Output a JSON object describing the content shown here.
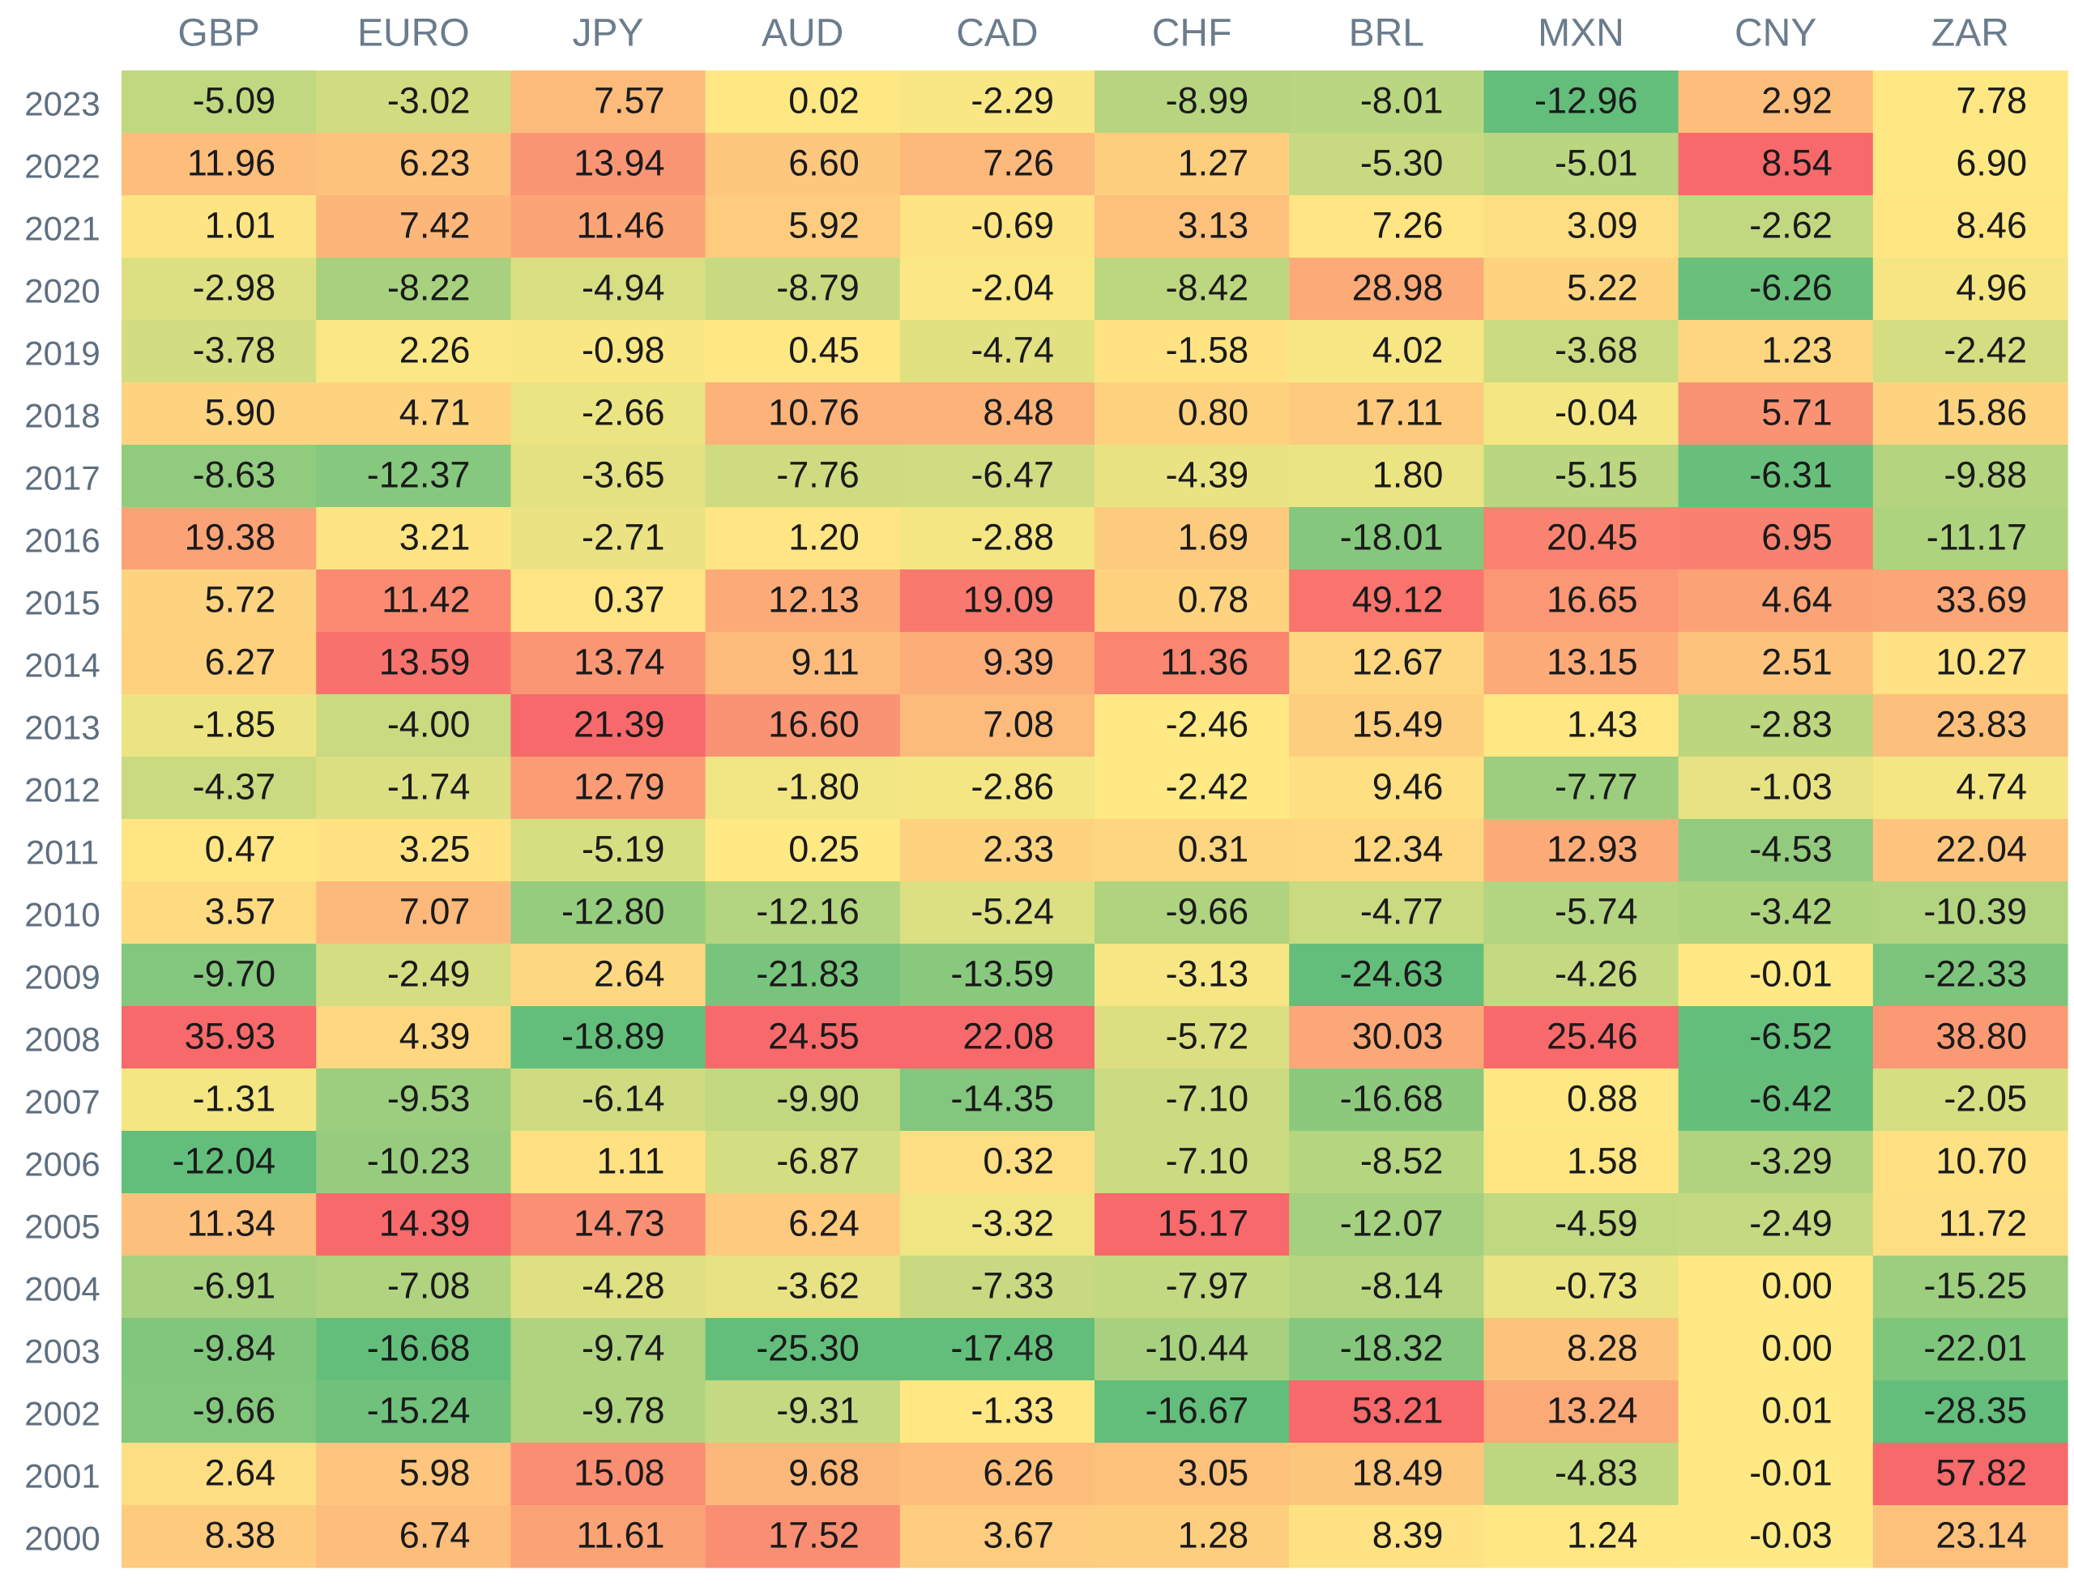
{
  "chart_data": {
    "type": "heatmap",
    "x_categories": [
      "GBP",
      "EURO",
      "JPY",
      "AUD",
      "CAD",
      "CHF",
      "BRL",
      "MXN",
      "CNY",
      "ZAR"
    ],
    "y_categories": [
      "2023",
      "2022",
      "2021",
      "2020",
      "2019",
      "2018",
      "2017",
      "2016",
      "2015",
      "2014",
      "2013",
      "2012",
      "2011",
      "2010",
      "2009",
      "2008",
      "2007",
      "2006",
      "2005",
      "2004",
      "2003",
      "2002",
      "2001",
      "2000"
    ],
    "colors": [
      "#63be7b",
      "#ffe984",
      "#f8696b"
    ],
    "values": [
      [
        -5.09,
        -3.02,
        7.57,
        0.02,
        -2.29,
        -8.99,
        -8.01,
        -12.96,
        2.92,
        7.78
      ],
      [
        11.96,
        6.23,
        13.94,
        6.6,
        7.26,
        1.27,
        -5.3,
        -5.01,
        8.54,
        6.9
      ],
      [
        1.01,
        7.42,
        11.46,
        5.92,
        -0.69,
        3.13,
        7.26,
        3.09,
        -2.62,
        8.46
      ],
      [
        -2.98,
        -8.22,
        -4.94,
        -8.79,
        -2.04,
        -8.42,
        28.98,
        5.22,
        -6.26,
        4.96
      ],
      [
        -3.78,
        2.26,
        -0.98,
        0.45,
        -4.74,
        -1.58,
        4.02,
        -3.68,
        1.23,
        -2.42
      ],
      [
        5.9,
        4.71,
        -2.66,
        10.76,
        8.48,
        0.8,
        17.11,
        -0.04,
        5.71,
        15.86
      ],
      [
        -8.63,
        -12.37,
        -3.65,
        -7.76,
        -6.47,
        -4.39,
        1.8,
        -5.15,
        -6.31,
        -9.88
      ],
      [
        19.38,
        3.21,
        -2.71,
        1.2,
        -2.88,
        1.69,
        -18.01,
        20.45,
        6.95,
        -11.17
      ],
      [
        5.72,
        11.42,
        0.37,
        12.13,
        19.09,
        0.78,
        49.12,
        16.65,
        4.64,
        33.69
      ],
      [
        6.27,
        13.59,
        13.74,
        9.11,
        9.39,
        11.36,
        12.67,
        13.15,
        2.51,
        10.27
      ],
      [
        -1.85,
        -4.0,
        21.39,
        16.6,
        7.08,
        -2.46,
        15.49,
        1.43,
        -2.83,
        23.83
      ],
      [
        -4.37,
        -1.74,
        12.79,
        -1.8,
        -2.86,
        -2.42,
        9.46,
        -7.77,
        -1.03,
        4.74
      ],
      [
        0.47,
        3.25,
        -5.19,
        0.25,
        2.33,
        0.31,
        12.34,
        12.93,
        -4.53,
        22.04
      ],
      [
        3.57,
        7.07,
        -12.8,
        -12.16,
        -5.24,
        -9.66,
        -4.77,
        -5.74,
        -3.42,
        -10.39
      ],
      [
        -9.7,
        -2.49,
        2.64,
        -21.83,
        -13.59,
        -3.13,
        -24.63,
        -4.26,
        -0.01,
        -22.33
      ],
      [
        35.93,
        4.39,
        -18.89,
        24.55,
        22.08,
        -5.72,
        30.03,
        25.46,
        -6.52,
        38.8
      ],
      [
        -1.31,
        -9.53,
        -6.14,
        -9.9,
        -14.35,
        -7.1,
        -16.68,
        0.88,
        -6.42,
        -2.05
      ],
      [
        -12.04,
        -10.23,
        1.11,
        -6.87,
        0.32,
        -7.1,
        -8.52,
        1.58,
        -3.29,
        10.7
      ],
      [
        11.34,
        14.39,
        14.73,
        6.24,
        -3.32,
        15.17,
        -12.07,
        -4.59,
        -2.49,
        11.72
      ],
      [
        -6.91,
        -7.08,
        -4.28,
        -3.62,
        -7.33,
        -7.97,
        -8.14,
        -0.73,
        0.0,
        -15.25
      ],
      [
        -9.84,
        -16.68,
        -9.74,
        -25.3,
        -17.48,
        -10.44,
        -18.32,
        8.28,
        0.0,
        -22.01
      ],
      [
        -9.66,
        -15.24,
        -9.78,
        -9.31,
        -1.33,
        -16.67,
        53.21,
        13.24,
        0.01,
        -28.35
      ],
      [
        2.64,
        5.98,
        15.08,
        9.68,
        6.26,
        3.05,
        18.49,
        -4.83,
        -0.01,
        57.82
      ],
      [
        8.38,
        6.74,
        11.61,
        17.52,
        3.67,
        1.28,
        8.39,
        1.24,
        -0.03,
        23.14
      ]
    ],
    "value_labels": [
      [
        "-5.09",
        "-3.02",
        "7.57",
        "0.02",
        "-2.29",
        "-8.99",
        "-8.01",
        "-12.96",
        "2.92",
        "7.78"
      ],
      [
        "11.96",
        "6.23",
        "13.94",
        "6.60",
        "7.26",
        "1.27",
        "-5.30",
        "-5.01",
        "8.54",
        "6.90"
      ],
      [
        "1.01",
        "7.42",
        "11.46",
        "5.92",
        "-0.69",
        "3.13",
        "7.26",
        "3.09",
        "-2.62",
        "8.46"
      ],
      [
        "-2.98",
        "-8.22",
        "-4.94",
        "-8.79",
        "-2.04",
        "-8.42",
        "28.98",
        "5.22",
        "-6.26",
        "4.96"
      ],
      [
        "-3.78",
        "2.26",
        "-0.98",
        "0.45",
        "-4.74",
        "-1.58",
        "4.02",
        "-3.68",
        "1.23",
        "-2.42"
      ],
      [
        "5.90",
        "4.71",
        "-2.66",
        "10.76",
        "8.48",
        "0.80",
        "17.11",
        "-0.04",
        "5.71",
        "15.86"
      ],
      [
        "-8.63",
        "-12.37",
        "-3.65",
        "-7.76",
        "-6.47",
        "-4.39",
        "1.80",
        "-5.15",
        "-6.31",
        "-9.88"
      ],
      [
        "19.38",
        "3.21",
        "-2.71",
        "1.20",
        "-2.88",
        "1.69",
        "-18.01",
        "20.45",
        "6.95",
        "-11.17"
      ],
      [
        "5.72",
        "11.42",
        "0.37",
        "12.13",
        "19.09",
        "0.78",
        "49.12",
        "16.65",
        "4.64",
        "33.69"
      ],
      [
        "6.27",
        "13.59",
        "13.74",
        "9.11",
        "9.39",
        "11.36",
        "12.67",
        "13.15",
        "2.51",
        "10.27"
      ],
      [
        "-1.85",
        "-4.00",
        "21.39",
        "16.60",
        "7.08",
        "-2.46",
        "15.49",
        "1.43",
        "-2.83",
        "23.83"
      ],
      [
        "-4.37",
        "-1.74",
        "12.79",
        "-1.80",
        "-2.86",
        "-2.42",
        "9.46",
        "-7.77",
        "-1.03",
        "4.74"
      ],
      [
        "0.47",
        "3.25",
        "-5.19",
        "0.25",
        "2.33",
        "0.31",
        "12.34",
        "12.93",
        "-4.53",
        "22.04"
      ],
      [
        "3.57",
        "7.07",
        "-12.80",
        "-12.16",
        "-5.24",
        "-9.66",
        "-4.77",
        "-5.74",
        "-3.42",
        "-10.39"
      ],
      [
        "-9.70",
        "-2.49",
        "2.64",
        "-21.83",
        "-13.59",
        "-3.13",
        "-24.63",
        "-4.26",
        "-0.01",
        "-22.33"
      ],
      [
        "35.93",
        "4.39",
        "-18.89",
        "24.55",
        "22.08",
        "-5.72",
        "30.03",
        "25.46",
        "-6.52",
        "38.80"
      ],
      [
        "-1.31",
        "-9.53",
        "-6.14",
        "-9.90",
        "-14.35",
        "-7.10",
        "-16.68",
        "0.88",
        "-6.42",
        "-2.05"
      ],
      [
        "-12.04",
        "-10.23",
        "1.11",
        "-6.87",
        "0.32",
        "-7.10",
        "-8.52",
        "1.58",
        "-3.29",
        "10.70"
      ],
      [
        "11.34",
        "14.39",
        "14.73",
        "6.24",
        "-3.32",
        "15.17",
        "-12.07",
        "-4.59",
        "-2.49",
        "11.72"
      ],
      [
        "-6.91",
        "-7.08",
        "-4.28",
        "-3.62",
        "-7.33",
        "-7.97",
        "-8.14",
        "-0.73",
        "0.00",
        "-15.25"
      ],
      [
        "-9.84",
        "-16.68",
        "-9.74",
        "-25.30",
        "-17.48",
        "-10.44",
        "-18.32",
        "8.28",
        "0.00",
        "-22.01"
      ],
      [
        "-9.66",
        "-15.24",
        "-9.78",
        "-9.31",
        "-1.33",
        "-16.67",
        "53.21",
        "13.24",
        "0.01",
        "-28.35"
      ],
      [
        "2.64",
        "5.98",
        "15.08",
        "9.68",
        "6.26",
        "3.05",
        "18.49",
        "-4.83",
        "-0.01",
        "57.82"
      ],
      [
        "8.38",
        "6.74",
        "11.61",
        "17.52",
        "3.67",
        "1.28",
        "8.39",
        "1.24",
        "-0.03",
        "23.14"
      ]
    ]
  }
}
